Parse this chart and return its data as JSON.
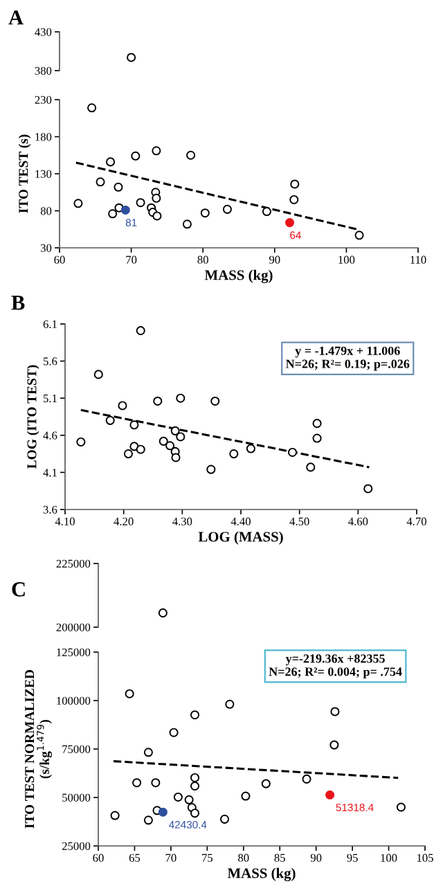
{
  "chart_data": [
    {
      "type": "scatter",
      "title": "A",
      "marker": "circle",
      "tick_labels": "y",
      "xlim": [
        60,
        110
      ],
      "ylim": [
        380,
        430
      ],
      "yticks": [
        380,
        430
      ],
      "series": [
        {
          "color": "#000000",
          "x": [
            70.0
          ],
          "values": [
            397
          ]
        }
      ]
    },
    {
      "type": "scatter",
      "xlabel": "MASS (kg)",
      "ylabel": "ITO TEST (s)",
      "marker": "circle",
      "xlim": [
        60,
        110
      ],
      "xticks": [
        60,
        70,
        80,
        90,
        100,
        110
      ],
      "ylim": [
        30,
        230
      ],
      "yticks": [
        30,
        80,
        130,
        180,
        230
      ],
      "series": [
        {
          "color": "#000000",
          "x": [
            64.5,
            67.1,
            70.6,
            73.5,
            78.3,
            65.7,
            68.2,
            62.6,
            67.4,
            68.3,
            71.3,
            73.4,
            73.5,
            72.8,
            73.0,
            73.6,
            77.8,
            80.3,
            83.4,
            88.9,
            92.8,
            92.7,
            101.8
          ],
          "values": [
            219,
            146,
            154,
            161,
            155,
            119,
            112,
            90,
            76,
            84,
            91,
            105,
            97,
            84,
            78,
            73,
            62,
            77,
            82,
            79,
            116,
            95,
            47
          ]
        },
        {
          "color": "#2e4f9e",
          "x": [
            69.2
          ],
          "values": [
            81
          ],
          "value_labels": [
            "81"
          ]
        },
        {
          "color": "#e8141b",
          "x": [
            92.1
          ],
          "values": [
            64
          ],
          "value_labels": [
            "64"
          ]
        },
        {
          "type": "line",
          "line_style": "dashed",
          "marker": "none",
          "color": "#000000",
          "x": [
            62.3,
            101.5
          ],
          "values": [
            145,
            55
          ]
        }
      ]
    },
    {
      "type": "scatter",
      "title": "B",
      "xlabel": "LOG (MASS)",
      "ylabel": "LOG (ITO TEST)",
      "marker": "circle",
      "xlim": [
        4.1,
        4.7
      ],
      "xticks": [
        {
          "value": 4.1,
          "label": "4.10"
        },
        {
          "value": 4.2,
          "label": "4.20"
        },
        {
          "value": 4.3,
          "label": "4.30"
        },
        {
          "value": 4.4,
          "label": "4.40"
        },
        {
          "value": 4.5,
          "label": "4.50"
        },
        {
          "value": 4.6,
          "label": "4.60"
        },
        {
          "value": 4.7,
          "label": "4.70"
        }
      ],
      "ylim": [
        3.6,
        6.1
      ],
      "yticks": [
        3.6,
        4.1,
        4.6,
        5.1,
        5.6,
        6.1
      ],
      "annotations": [
        "y = -1.479x + 11.006\nN=26; R²= 0.19; p=.026"
      ],
      "series": [
        {
          "color": "#000000",
          "x": [
            4.229,
            4.157,
            4.198,
            4.258,
            4.297,
            4.356,
            4.177,
            4.218,
            4.127,
            4.268,
            4.288,
            4.297,
            4.279,
            4.218,
            4.229,
            4.208,
            4.288,
            4.289,
            4.349,
            4.388,
            4.417,
            4.488,
            4.53,
            4.53,
            4.519,
            4.617
          ],
          "values": [
            6.01,
            5.42,
            5.0,
            5.06,
            5.1,
            5.06,
            4.8,
            4.74,
            4.51,
            4.52,
            4.66,
            4.58,
            4.46,
            4.45,
            4.41,
            4.35,
            4.38,
            4.3,
            4.14,
            4.35,
            4.42,
            4.37,
            4.76,
            4.56,
            4.17,
            3.88
          ]
        },
        {
          "type": "line",
          "line_style": "dashed",
          "marker": "none",
          "color": "#000000",
          "x": [
            4.127,
            4.619
          ],
          "values": [
            4.94,
            4.17
          ]
        }
      ]
    },
    {
      "type": "scatter",
      "title": "C",
      "marker": "circle",
      "tick_labels": "y",
      "xlim": [
        60,
        105
      ],
      "ylim": [
        200000,
        225000
      ],
      "yticks": [
        200000,
        225000
      ],
      "series": [
        {
          "color": "#000000",
          "x": [
            68.9
          ],
          "values": [
            205600
          ]
        }
      ]
    },
    {
      "type": "scatter",
      "xlabel": "MASS (kg)",
      "ylabel": "ITO TEST NORMALIZED\n(s/kg$^{1.479}$)",
      "marker": "circle",
      "xlim": [
        60,
        105
      ],
      "xticks": [
        60,
        65,
        70,
        75,
        80,
        85,
        90,
        95,
        100,
        105
      ],
      "ylim": [
        25000,
        125000
      ],
      "yticks": [
        25000,
        50000,
        75000,
        100000,
        125000
      ],
      "annotations": [
        "y=-219.36x +82355\nN=26; R²= 0.004; p= .754"
      ],
      "series": [
        {
          "color": "#000000",
          "x": [
            64.3,
            78.1,
            73.3,
            92.6,
            92.5,
            70.4,
            66.9,
            65.3,
            67.9,
            73.3,
            73.3,
            83.1,
            88.7,
            71.0,
            72.5,
            80.3,
            72.9,
            73.3,
            62.3,
            68.1,
            66.9,
            77.4,
            101.7
          ],
          "values": [
            103500,
            98100,
            92600,
            94300,
            77100,
            83500,
            73300,
            57600,
            57600,
            60200,
            55900,
            57100,
            59500,
            50200,
            48800,
            50700,
            44800,
            41900,
            40700,
            43300,
            38300,
            38800,
            45000
          ]
        },
        {
          "color": "#2e4f9e",
          "x": [
            68.9
          ],
          "values": [
            42430.4
          ],
          "value_labels": [
            "42430.4"
          ]
        },
        {
          "color": "#e8141b",
          "x": [
            91.9
          ],
          "values": [
            51318.4
          ],
          "value_labels": [
            "51318.4"
          ]
        },
        {
          "type": "line",
          "line_style": "dashed",
          "marker": "none",
          "color": "#000000",
          "x": [
            62.1,
            101.3
          ],
          "values": [
            68700,
            60100
          ]
        }
      ]
    }
  ]
}
